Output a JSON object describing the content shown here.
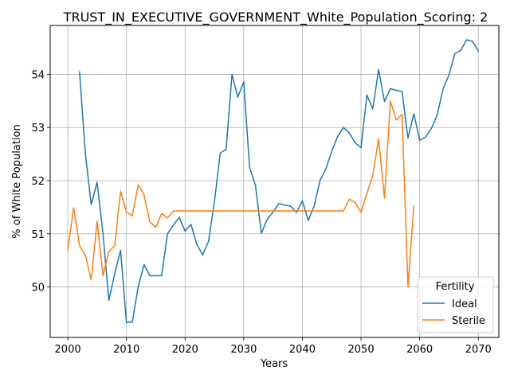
{
  "chart_data": {
    "type": "line",
    "title": "TRUST_IN_EXECUTIVE_GOVERNMENT_White_Population_Scoring: 2",
    "xlabel": "Years",
    "ylabel": "% of White Population",
    "xlim": [
      1997,
      2073.5
    ],
    "ylim": [
      49.05,
      54.92
    ],
    "xticks": [
      2000,
      2010,
      2020,
      2030,
      2040,
      2050,
      2060,
      2070
    ],
    "yticks": [
      50,
      51,
      52,
      53,
      54
    ],
    "grid": true,
    "legend": {
      "title": "Fertility",
      "placement": "lower-right"
    },
    "series": [
      {
        "name": "Ideal",
        "color": "#1f77b4",
        "x": [
          2002,
          2003,
          2004,
          2005,
          2006,
          2007,
          2008,
          2009,
          2010,
          2011,
          2012,
          2013,
          2014,
          2015,
          2016,
          2017,
          2018,
          2019,
          2020,
          2021,
          2022,
          2023,
          2024,
          2025,
          2026,
          2027,
          2028,
          2029,
          2030,
          2031,
          2032,
          2033,
          2034,
          2035,
          2036,
          2037,
          2038,
          2039,
          2040,
          2041,
          2042,
          2043,
          2044,
          2045,
          2046,
          2047,
          2048,
          2049,
          2050,
          2051,
          2052,
          2053,
          2054,
          2055,
          2056,
          2057,
          2058,
          2059,
          2060,
          2061,
          2062,
          2063,
          2064,
          2065,
          2066,
          2067,
          2068,
          2069,
          2070
        ],
        "y": [
          54.05,
          52.5,
          51.55,
          51.97,
          51.0,
          49.75,
          50.25,
          50.69,
          49.33,
          49.34,
          50.0,
          50.42,
          50.21,
          50.21,
          50.21,
          51.0,
          51.16,
          51.31,
          51.05,
          51.18,
          50.8,
          50.6,
          50.86,
          51.6,
          52.52,
          52.59,
          54.0,
          53.57,
          53.86,
          52.25,
          51.91,
          51.01,
          51.27,
          51.41,
          51.57,
          51.54,
          51.52,
          51.4,
          51.62,
          51.25,
          51.52,
          52.0,
          52.22,
          52.55,
          52.83,
          53.0,
          52.9,
          52.71,
          52.62,
          53.61,
          53.35,
          54.09,
          53.49,
          53.73,
          53.7,
          53.68,
          52.8,
          53.26,
          52.76,
          52.82,
          52.98,
          53.24,
          53.73,
          53.99,
          54.39,
          54.45,
          54.65,
          54.62,
          54.44
        ]
      },
      {
        "name": "Sterile",
        "color": "#ff7f0e",
        "x": [
          2000,
          2001,
          2002,
          2003,
          2004,
          2005,
          2006,
          2007,
          2008,
          2009,
          2010,
          2011,
          2012,
          2013,
          2014,
          2015,
          2016,
          2017,
          2018,
          2019,
          2020,
          2021,
          2022,
          2023,
          2024,
          2025,
          2026,
          2027,
          2028,
          2029,
          2030,
          2031,
          2032,
          2033,
          2034,
          2035,
          2036,
          2037,
          2038,
          2039,
          2040,
          2041,
          2042,
          2043,
          2044,
          2045,
          2046,
          2047,
          2048,
          2049,
          2050,
          2051,
          2052,
          2053,
          2054,
          2055,
          2056,
          2057,
          2058,
          2059
        ],
        "y": [
          50.7,
          51.49,
          50.78,
          50.6,
          50.13,
          51.24,
          50.21,
          50.66,
          50.78,
          51.8,
          51.41,
          51.34,
          51.92,
          51.73,
          51.22,
          51.12,
          51.38,
          51.3,
          51.43,
          51.43,
          51.43,
          51.43,
          51.43,
          51.43,
          51.43,
          51.43,
          51.43,
          51.43,
          51.43,
          51.43,
          51.43,
          51.43,
          51.43,
          51.43,
          51.43,
          51.43,
          51.43,
          51.43,
          51.43,
          51.43,
          51.43,
          51.43,
          51.43,
          51.43,
          51.43,
          51.43,
          51.43,
          51.43,
          51.65,
          51.59,
          51.4,
          51.76,
          52.09,
          52.79,
          51.67,
          53.5,
          53.14,
          53.25,
          50.0,
          51.52
        ]
      }
    ]
  }
}
